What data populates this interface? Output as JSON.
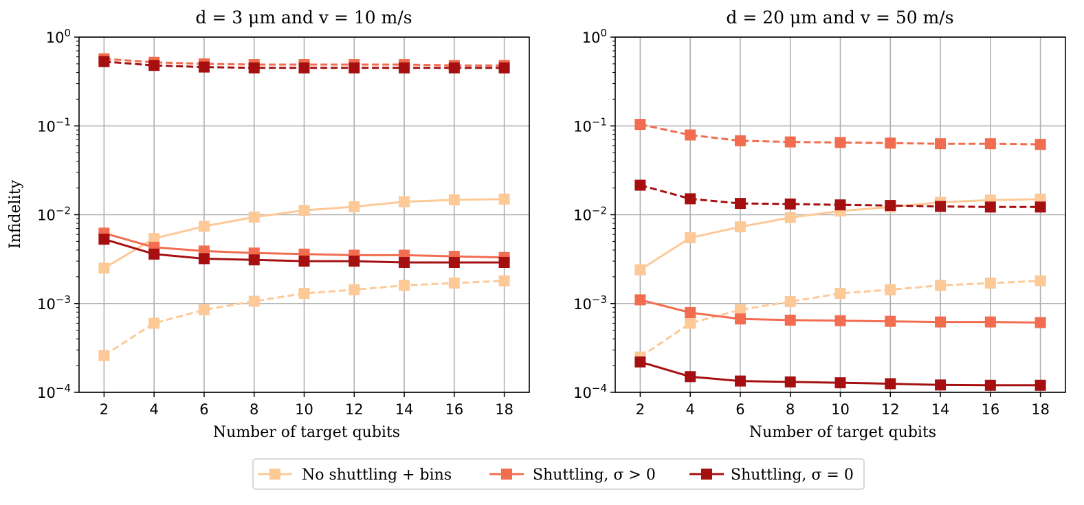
{
  "colors": {
    "no_shuttling": "#fdc997",
    "shuttling_sigma_pos": "#f26c4f",
    "shuttling_sigma_zero": "#a50f10",
    "grid": "#b0b0b0",
    "axis": "#000000"
  },
  "legend": {
    "placement": "bottom-center",
    "entries": [
      {
        "label": "No shuttling + bins",
        "color_key": "no_shuttling"
      },
      {
        "label": "Shuttling, σ > 0",
        "color_key": "shuttling_sigma_pos"
      },
      {
        "label": "Shuttling, σ = 0",
        "color_key": "shuttling_sigma_zero"
      }
    ]
  },
  "chart_data": [
    {
      "type": "line",
      "title": "d = 3 μm and v = 10 m/s",
      "xlabel": "Number of target qubits",
      "ylabel": "Infidelity",
      "yscale": "log",
      "ylim": [
        0.0001,
        1
      ],
      "xlim": [
        1,
        19
      ],
      "grid": true,
      "x": [
        2,
        4,
        6,
        8,
        10,
        12,
        14,
        16,
        18
      ],
      "xticks": [
        "2",
        "4",
        "6",
        "8",
        "10",
        "12",
        "14",
        "16",
        "18"
      ],
      "yticks": [
        {
          "value": 0.0001,
          "base": "10",
          "exp": "−4"
        },
        {
          "value": 0.001,
          "base": "10",
          "exp": "−3"
        },
        {
          "value": 0.01,
          "base": "10",
          "exp": "−2"
        },
        {
          "value": 0.1,
          "base": "10",
          "exp": "−1"
        },
        {
          "value": 1,
          "base": "10",
          "exp": "0"
        }
      ],
      "series": [
        {
          "name": "No shuttling + bins",
          "color_key": "no_shuttling",
          "style": "solid",
          "values": [
            0.0025,
            0.0054,
            0.0074,
            0.0094,
            0.0112,
            0.0123,
            0.014,
            0.0147,
            0.015
          ]
        },
        {
          "color_key": "no_shuttling",
          "style": "dashed",
          "values": [
            0.00026,
            0.0006,
            0.00085,
            0.00106,
            0.0013,
            0.00143,
            0.0016,
            0.0017,
            0.0018
          ]
        },
        {
          "name": "Shuttling, σ > 0",
          "color_key": "shuttling_sigma_pos",
          "style": "solid",
          "values": [
            0.0062,
            0.0043,
            0.0039,
            0.0037,
            0.0036,
            0.0035,
            0.0035,
            0.0034,
            0.0033
          ]
        },
        {
          "color_key": "shuttling_sigma_pos",
          "style": "dashed",
          "values": [
            0.57,
            0.52,
            0.5,
            0.49,
            0.49,
            0.49,
            0.49,
            0.48,
            0.48
          ]
        },
        {
          "name": "Shuttling, σ = 0",
          "color_key": "shuttling_sigma_zero",
          "style": "solid",
          "values": [
            0.0053,
            0.0036,
            0.0032,
            0.0031,
            0.003,
            0.003,
            0.0029,
            0.0029,
            0.0029
          ]
        },
        {
          "color_key": "shuttling_sigma_zero",
          "style": "dashed",
          "values": [
            0.53,
            0.48,
            0.46,
            0.45,
            0.45,
            0.45,
            0.45,
            0.45,
            0.45
          ]
        }
      ]
    },
    {
      "type": "line",
      "title": "d = 20 μm and v = 50 m/s",
      "xlabel": "Number of target qubits",
      "ylabel": "",
      "yscale": "log",
      "ylim": [
        0.0001,
        1
      ],
      "xlim": [
        1,
        19
      ],
      "grid": true,
      "x": [
        2,
        4,
        6,
        8,
        10,
        12,
        14,
        16,
        18
      ],
      "xticks": [
        "2",
        "4",
        "6",
        "8",
        "10",
        "12",
        "14",
        "16",
        "18"
      ],
      "yticks": [
        {
          "value": 0.0001,
          "base": "10",
          "exp": "−4"
        },
        {
          "value": 0.001,
          "base": "10",
          "exp": "−3"
        },
        {
          "value": 0.01,
          "base": "10",
          "exp": "−2"
        },
        {
          "value": 0.1,
          "base": "10",
          "exp": "−1"
        },
        {
          "value": 1,
          "base": "10",
          "exp": "0"
        }
      ],
      "series": [
        {
          "name": "No shuttling + bins",
          "color_key": "no_shuttling",
          "style": "solid",
          "values": [
            0.0024,
            0.0055,
            0.0073,
            0.0093,
            0.011,
            0.0122,
            0.0138,
            0.0146,
            0.015
          ]
        },
        {
          "color_key": "no_shuttling",
          "style": "dashed",
          "values": [
            0.00025,
            0.0006,
            0.00085,
            0.00105,
            0.0013,
            0.00143,
            0.0016,
            0.0017,
            0.0018
          ]
        },
        {
          "name": "Shuttling, σ > 0",
          "color_key": "shuttling_sigma_pos",
          "style": "solid",
          "values": [
            0.0011,
            0.00079,
            0.00067,
            0.00065,
            0.00064,
            0.00063,
            0.00062,
            0.00062,
            0.00061
          ]
        },
        {
          "color_key": "shuttling_sigma_pos",
          "style": "dashed",
          "values": [
            0.104,
            0.079,
            0.068,
            0.066,
            0.065,
            0.064,
            0.063,
            0.063,
            0.062
          ]
        },
        {
          "name": "Shuttling, σ = 0",
          "color_key": "shuttling_sigma_zero",
          "style": "solid",
          "values": [
            0.00022,
            0.00015,
            0.000134,
            0.000131,
            0.000128,
            0.000125,
            0.000121,
            0.00012,
            0.00012
          ]
        },
        {
          "color_key": "shuttling_sigma_zero",
          "style": "dashed",
          "values": [
            0.0215,
            0.0151,
            0.0134,
            0.0132,
            0.0129,
            0.0127,
            0.0124,
            0.0122,
            0.0122
          ]
        }
      ]
    }
  ]
}
